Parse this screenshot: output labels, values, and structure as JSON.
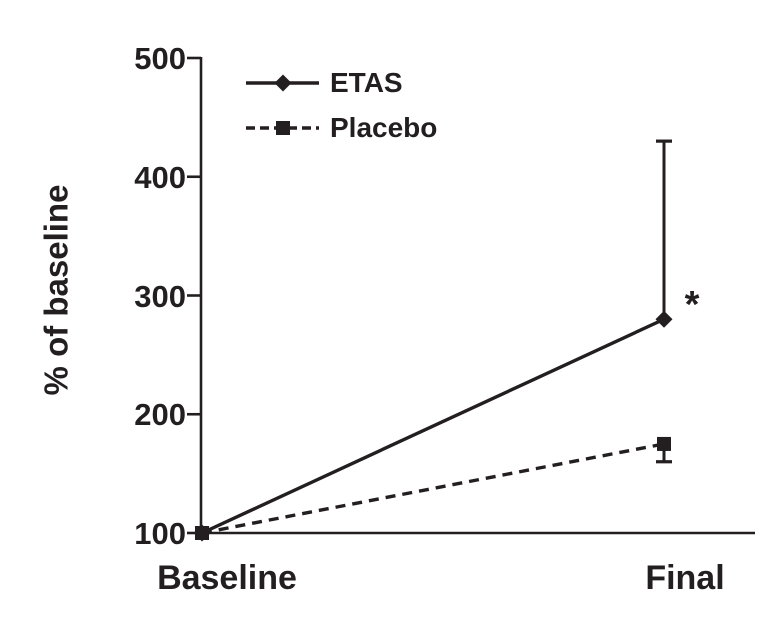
{
  "figure": {
    "background_color": "#ffffff",
    "ink_color": "#231f20"
  },
  "chart_data": {
    "type": "line",
    "title": "",
    "xlabel": "",
    "ylabel": "% of baseline",
    "categories": [
      "Baseline",
      "Final"
    ],
    "y_axis": {
      "min": 100,
      "max": 500,
      "ticks": [
        100,
        200,
        300,
        400,
        500
      ],
      "tick_labels": [
        "100",
        "200",
        "300",
        "400",
        "500"
      ]
    },
    "grid": false,
    "legend": {
      "position": "top-left-inside"
    },
    "series": [
      {
        "name": "ETAS",
        "line_style": "solid",
        "marker": "diamond",
        "values": [
          100,
          280
        ],
        "error_bar": {
          "at": "Final",
          "direction": "upper",
          "to": 430
        }
      },
      {
        "name": "Placebo",
        "line_style": "dashed",
        "marker": "square",
        "values": [
          100,
          175
        ],
        "error_bar": {
          "at": "Final",
          "direction": "lower",
          "to": 160
        }
      }
    ],
    "annotations": [
      {
        "text": "*",
        "near": "ETAS Final point",
        "x_category": "Final",
        "y_value": 295
      }
    ]
  }
}
